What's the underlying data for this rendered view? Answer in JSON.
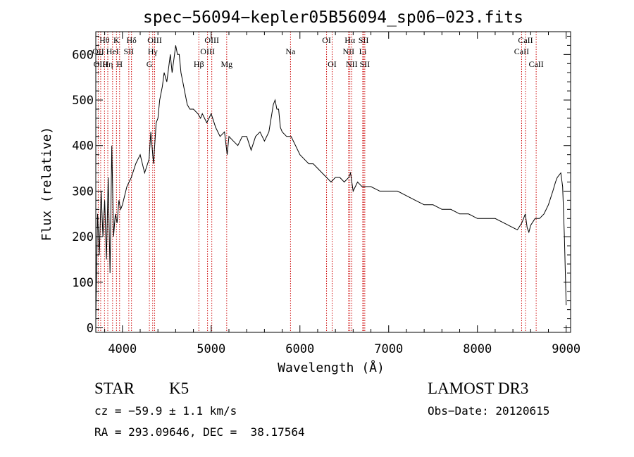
{
  "chart_data": {
    "type": "line",
    "title": "spec−56094−kepler05B56094_sp06−023.fits",
    "xlabel": "Wavelength (Å)",
    "ylabel": "Flux (relative)",
    "xlim": [
      3700,
      9050
    ],
    "ylim": [
      -10,
      650
    ],
    "x_ticks": [
      4000,
      5000,
      6000,
      7000,
      8000,
      9000
    ],
    "y_ticks": [
      0,
      100,
      200,
      300,
      400,
      500,
      600
    ],
    "grid": false,
    "line_color": "#000000",
    "marker_color": "#cc0000",
    "spectrum": {
      "name": "",
      "x": [
        3700,
        3720,
        3740,
        3760,
        3780,
        3800,
        3820,
        3840,
        3860,
        3880,
        3900,
        3920,
        3940,
        3960,
        3980,
        4000,
        4050,
        4100,
        4150,
        4200,
        4250,
        4300,
        4320,
        4350,
        4380,
        4400,
        4420,
        4450,
        4470,
        4500,
        4520,
        4540,
        4560,
        4580,
        4600,
        4620,
        4640,
        4660,
        4680,
        4700,
        4730,
        4760,
        4800,
        4850,
        4880,
        4900,
        4950,
        5000,
        5050,
        5100,
        5150,
        5180,
        5200,
        5250,
        5300,
        5350,
        5400,
        5450,
        5500,
        5550,
        5600,
        5650,
        5700,
        5720,
        5740,
        5760,
        5780,
        5800,
        5850,
        5900,
        5950,
        6000,
        6050,
        6100,
        6150,
        6200,
        6250,
        6300,
        6350,
        6400,
        6450,
        6500,
        6550,
        6570,
        6600,
        6650,
        6700,
        6800,
        6900,
        7000,
        7100,
        7200,
        7300,
        7400,
        7500,
        7600,
        7700,
        7800,
        7900,
        8000,
        8100,
        8200,
        8300,
        8400,
        8450,
        8500,
        8540,
        8560,
        8580,
        8600,
        8650,
        8700,
        8750,
        8800,
        8850,
        8880,
        8900,
        8940,
        8960,
        8980,
        9000
      ],
      "y": [
        20,
        250,
        160,
        300,
        200,
        280,
        150,
        330,
        120,
        400,
        200,
        250,
        230,
        280,
        260,
        270,
        310,
        330,
        360,
        380,
        340,
        370,
        430,
        360,
        450,
        460,
        500,
        530,
        560,
        540,
        570,
        600,
        560,
        590,
        620,
        600,
        600,
        560,
        540,
        520,
        490,
        480,
        480,
        470,
        460,
        470,
        450,
        470,
        440,
        420,
        430,
        380,
        420,
        410,
        400,
        420,
        420,
        390,
        420,
        430,
        410,
        430,
        490,
        500,
        480,
        480,
        440,
        430,
        420,
        420,
        400,
        380,
        370,
        360,
        360,
        350,
        340,
        330,
        320,
        330,
        330,
        320,
        330,
        340,
        300,
        320,
        310,
        310,
        300,
        300,
        300,
        290,
        280,
        270,
        270,
        260,
        260,
        250,
        250,
        240,
        240,
        240,
        230,
        220,
        215,
        230,
        250,
        220,
        210,
        225,
        240,
        240,
        250,
        270,
        300,
        320,
        330,
        340,
        310,
        200,
        50
      ]
    },
    "lines": [
      {
        "label": "Hθ",
        "x": 3798,
        "row": 1
      },
      {
        "label": "OII",
        "x": 3727,
        "row": 2
      },
      {
        "label": "Hη",
        "x": 3835,
        "row": 3
      },
      {
        "label": "OIII",
        "x": 3755,
        "row": 3
      },
      {
        "label": "HeI",
        "x": 3889,
        "row": 2
      },
      {
        "label": "K",
        "x": 3933,
        "row": 1
      },
      {
        "label": "H",
        "x": 3968,
        "row": 3
      },
      {
        "label": "SII",
        "x": 4072,
        "row": 2
      },
      {
        "label": "Hδ",
        "x": 4102,
        "row": 1
      },
      {
        "label": "G",
        "x": 4304,
        "row": 3
      },
      {
        "label": "Hγ",
        "x": 4341,
        "row": 2
      },
      {
        "label": "OIII",
        "x": 4363,
        "row": 1
      },
      {
        "label": "Hβ",
        "x": 4861,
        "row": 3
      },
      {
        "label": "OIII",
        "x": 4959,
        "row": 2
      },
      {
        "label": "OIII",
        "x": 5007,
        "row": 1
      },
      {
        "label": "Mg",
        "x": 5175,
        "row": 3
      },
      {
        "label": "Na",
        "x": 5894,
        "row": 2
      },
      {
        "label": "OI",
        "x": 6300,
        "row": 1
      },
      {
        "label": "OI",
        "x": 6363,
        "row": 3
      },
      {
        "label": "NII",
        "x": 6548,
        "row": 2
      },
      {
        "label": "Hα",
        "x": 6563,
        "row": 1
      },
      {
        "label": "NII",
        "x": 6584,
        "row": 3
      },
      {
        "label": "Li",
        "x": 6708,
        "row": 2
      },
      {
        "label": "SII",
        "x": 6717,
        "row": 1
      },
      {
        "label": "SII",
        "x": 6731,
        "row": 3
      },
      {
        "label": "CaII",
        "x": 8498,
        "row": 2
      },
      {
        "label": "CaII",
        "x": 8542,
        "row": 1
      },
      {
        "label": "CaII",
        "x": 8662,
        "row": 3
      }
    ]
  },
  "info": {
    "object_class": "STAR",
    "subclass": "K5",
    "survey": "LAMOST DR3",
    "cz": "cz = −59.9 ± 1.1 km/s",
    "obs_date": "Obs−Date: 20120615",
    "coords": "RA = 293.09646, DEC =  38.17564"
  }
}
